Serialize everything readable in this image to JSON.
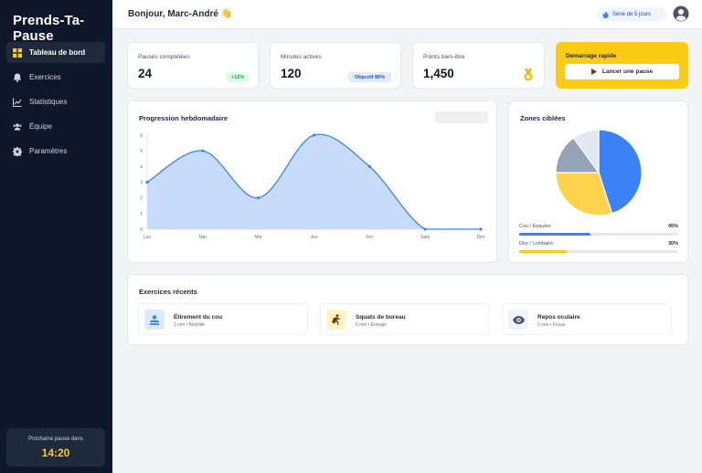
{
  "app": {
    "brand": "Prends-Ta-Pause"
  },
  "sidebar": {
    "items": [
      {
        "label": "Tableau de bord",
        "icon": "grid-icon",
        "active": true
      },
      {
        "label": "Exercices",
        "icon": "bell-icon",
        "active": false
      },
      {
        "label": "Statistiques",
        "icon": "chart-line-icon",
        "active": false
      },
      {
        "label": "Équipe",
        "icon": "users-icon",
        "active": false
      },
      {
        "label": "Paramètres",
        "icon": "gear-icon",
        "active": false
      }
    ],
    "next_pause": {
      "label": "Prochaine pause dans",
      "time": "14:20"
    }
  },
  "header": {
    "greeting": "Bonjour, Marc-André 👋",
    "streak": "Série de 5 jours",
    "avatar_icon": "user-circle-icon"
  },
  "stats": [
    {
      "label": "Pauses complétées",
      "value": "24",
      "badge": "+12%"
    },
    {
      "label": "Minutes actives",
      "value": "120",
      "badge": "Objectif 80%"
    },
    {
      "label": "Points bien-être",
      "value": "1,450",
      "icon": "medal-icon"
    }
  ],
  "quick_start": {
    "title": "Démarrage rapide",
    "button": "Lancer une pause",
    "icon": "play-icon"
  },
  "weekly": {
    "title": "Progression hebdomadaire"
  },
  "zones": {
    "title": "Zones ciblées",
    "rows": [
      {
        "label": "Cou / Épaules",
        "percent": "45%",
        "value": 45,
        "color": "#3b82f6"
      },
      {
        "label": "Dos / Lombaire",
        "percent": "30%",
        "value": 30,
        "color": "#facc15"
      }
    ]
  },
  "recent": {
    "title": "Exercices récents",
    "items": [
      {
        "name": "Étirement du cou",
        "meta": "3 min • Mobilité",
        "icon": "user-stretch-icon",
        "bg": "#dbeafe",
        "fg": "#3b82f6"
      },
      {
        "name": "Squats de bureau",
        "meta": "5 min • Énergie",
        "icon": "running-icon",
        "bg": "#fef3c7",
        "fg": "#92400e"
      },
      {
        "name": "Repos oculaire",
        "meta": "2 min • Focus",
        "icon": "eye-icon",
        "bg": "#f1f5f9",
        "fg": "#475569"
      }
    ]
  },
  "colors": {
    "accent": "#facc15",
    "primary": "#3b82f6",
    "sidebar": "#0f172a"
  },
  "chart_data": [
    {
      "type": "area",
      "categories": [
        "Lun",
        "Mar",
        "Mer",
        "Jeu",
        "Ven",
        "Sam",
        "Dim"
      ],
      "series": [
        {
          "values": [
            3,
            5,
            2,
            6,
            4,
            0,
            0
          ]
        }
      ],
      "y_ticks": [
        "0",
        "1",
        "2",
        "3",
        "4",
        "5",
        "6"
      ],
      "ylim": [
        0,
        6
      ],
      "color": "#3b82f6",
      "fill": "#c7dbfb"
    },
    {
      "type": "pie",
      "slices": [
        {
          "value": 45,
          "color": "#3b82f6"
        },
        {
          "value": 30,
          "color": "#fcd34d"
        },
        {
          "value": 15,
          "color": "#94a3b8"
        },
        {
          "value": 10,
          "color": "#e2e8f0"
        }
      ]
    }
  ]
}
